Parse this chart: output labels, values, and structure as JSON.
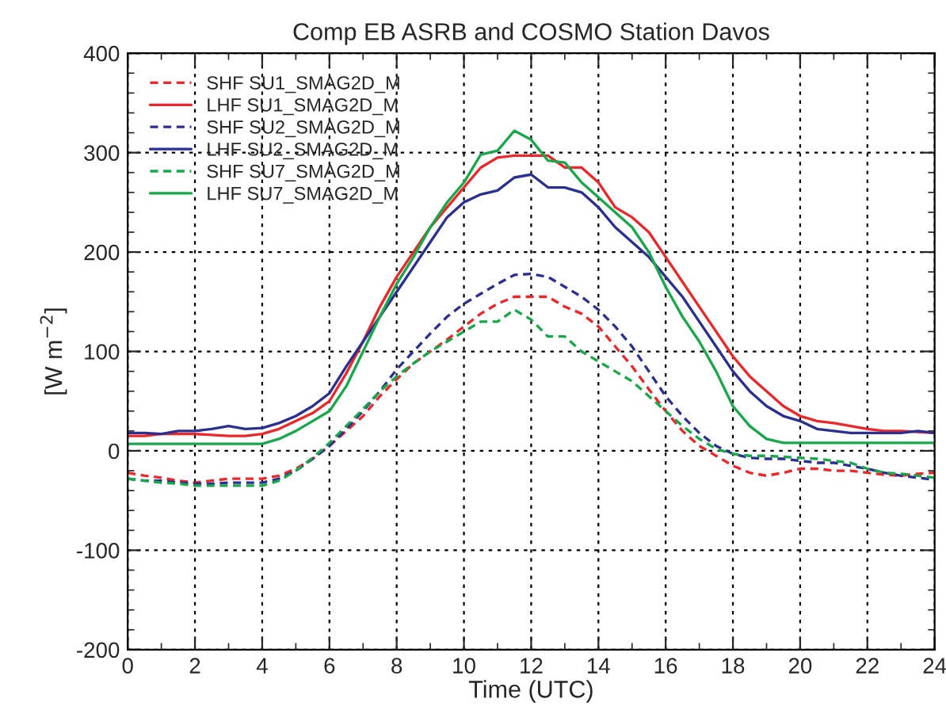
{
  "chart_data": {
    "type": "line",
    "title": "Comp EB ASRB and COSMO Station Davos",
    "xlabel": "Time (UTC)",
    "ylabel": "[W m$^{−2}$]",
    "x": [
      0,
      0.5,
      1,
      1.5,
      2,
      2.5,
      3,
      3.5,
      4,
      4.5,
      5,
      5.5,
      6,
      6.5,
      7,
      7.5,
      8,
      8.5,
      9,
      9.5,
      10,
      10.5,
      11,
      11.5,
      12,
      12.5,
      13,
      13.5,
      14,
      14.5,
      15,
      15.5,
      16,
      16.5,
      17,
      17.5,
      18,
      18.5,
      19,
      19.5,
      20,
      20.5,
      21,
      21.5,
      22,
      22.5,
      23,
      23.5,
      24
    ],
    "series": [
      {
        "name": "SHF SU1_SMAG2D_M",
        "color": "#e8282a",
        "line_style": "dashed",
        "values": [
          -22,
          -25,
          -27,
          -30,
          -32,
          -30,
          -28,
          -28,
          -28,
          -25,
          -18,
          -8,
          5,
          20,
          35,
          55,
          72,
          88,
          100,
          112,
          125,
          138,
          148,
          155,
          155,
          155,
          145,
          138,
          125,
          105,
          85,
          62,
          40,
          20,
          5,
          -5,
          -15,
          -22,
          -25,
          -22,
          -18,
          -18,
          -20,
          -20,
          -22,
          -24,
          -25,
          -23,
          -22
        ]
      },
      {
        "name": "LHF SU1_SMAG2D_M",
        "color": "#e8282a",
        "line_style": "solid",
        "values": [
          15,
          15,
          17,
          17,
          17,
          16,
          15,
          15,
          17,
          22,
          30,
          38,
          50,
          78,
          110,
          145,
          175,
          200,
          225,
          245,
          265,
          285,
          295,
          297,
          297,
          297,
          285,
          285,
          270,
          245,
          235,
          220,
          195,
          170,
          145,
          120,
          95,
          75,
          60,
          45,
          35,
          30,
          28,
          25,
          22,
          20,
          20,
          19,
          18
        ]
      },
      {
        "name": "SHF SU2_SMAG2D_M",
        "color": "#2b2f8f",
        "line_style": "dashed",
        "values": [
          -28,
          -30,
          -30,
          -32,
          -33,
          -33,
          -32,
          -32,
          -32,
          -28,
          -20,
          -8,
          5,
          22,
          40,
          60,
          82,
          100,
          118,
          135,
          148,
          158,
          168,
          177,
          178,
          175,
          165,
          155,
          142,
          125,
          105,
          80,
          55,
          35,
          18,
          5,
          -3,
          -7,
          -8,
          -8,
          -10,
          -12,
          -12,
          -15,
          -18,
          -22,
          -25,
          -27,
          -29
        ]
      },
      {
        "name": "LHF SU2_SMAG2D_M",
        "color": "#2b2f8f",
        "line_style": "solid",
        "values": [
          18,
          18,
          17,
          20,
          20,
          22,
          25,
          22,
          23,
          28,
          35,
          45,
          58,
          85,
          110,
          135,
          160,
          185,
          210,
          235,
          250,
          258,
          262,
          275,
          278,
          265,
          265,
          260,
          245,
          225,
          210,
          195,
          175,
          155,
          130,
          105,
          80,
          60,
          45,
          35,
          30,
          22,
          20,
          18,
          18,
          18,
          18,
          20,
          18
        ]
      },
      {
        "name": "SHF SU7_SMAG2D_M",
        "color": "#1aa64a",
        "line_style": "dashed",
        "values": [
          -28,
          -30,
          -32,
          -33,
          -35,
          -35,
          -35,
          -35,
          -35,
          -30,
          -20,
          -7,
          8,
          25,
          42,
          60,
          75,
          88,
          100,
          110,
          120,
          130,
          130,
          142,
          132,
          115,
          115,
          100,
          90,
          80,
          70,
          55,
          40,
          25,
          12,
          2,
          -3,
          -5,
          -5,
          -6,
          -7,
          -8,
          -10,
          -12,
          -18,
          -22,
          -23,
          -25,
          -27
        ]
      },
      {
        "name": "LHF SU7_SMAG2D_M",
        "color": "#1aa64a",
        "line_style": "solid",
        "values": [
          7,
          7,
          7,
          7,
          7,
          7,
          7,
          7,
          7,
          12,
          20,
          30,
          40,
          65,
          100,
          135,
          168,
          195,
          225,
          250,
          270,
          298,
          302,
          322,
          313,
          292,
          290,
          270,
          255,
          240,
          225,
          200,
          165,
          135,
          110,
          80,
          45,
          25,
          12,
          8,
          8,
          8,
          8,
          8,
          8,
          8,
          8,
          8,
          8
        ]
      }
    ],
    "xlim": [
      0,
      24
    ],
    "xticks": [
      0,
      2,
      4,
      6,
      8,
      10,
      12,
      14,
      16,
      18,
      20,
      22,
      24
    ],
    "ylim": [
      -200,
      400
    ],
    "yticks": [
      -200,
      -100,
      0,
      100,
      200,
      300,
      400
    ],
    "grid": true,
    "legend": "top left"
  }
}
